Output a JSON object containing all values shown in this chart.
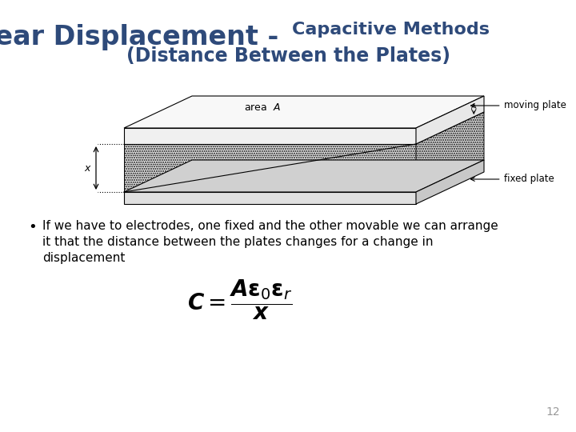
{
  "title_main": "Linear Displacement - ",
  "title_sub": "Capacitive Methods",
  "title_line2": "(Distance Between the Plates)",
  "bullet_text_line1": "If we have to electrodes, one fixed and the other movable we can arrange",
  "bullet_text_line2": "it that the distance between the plates changes for a change in",
  "bullet_text_line3": "displacement",
  "page_number": "12",
  "bg_color": "#ffffff",
  "title_color": "#2E4A7A",
  "text_color": "#000000"
}
